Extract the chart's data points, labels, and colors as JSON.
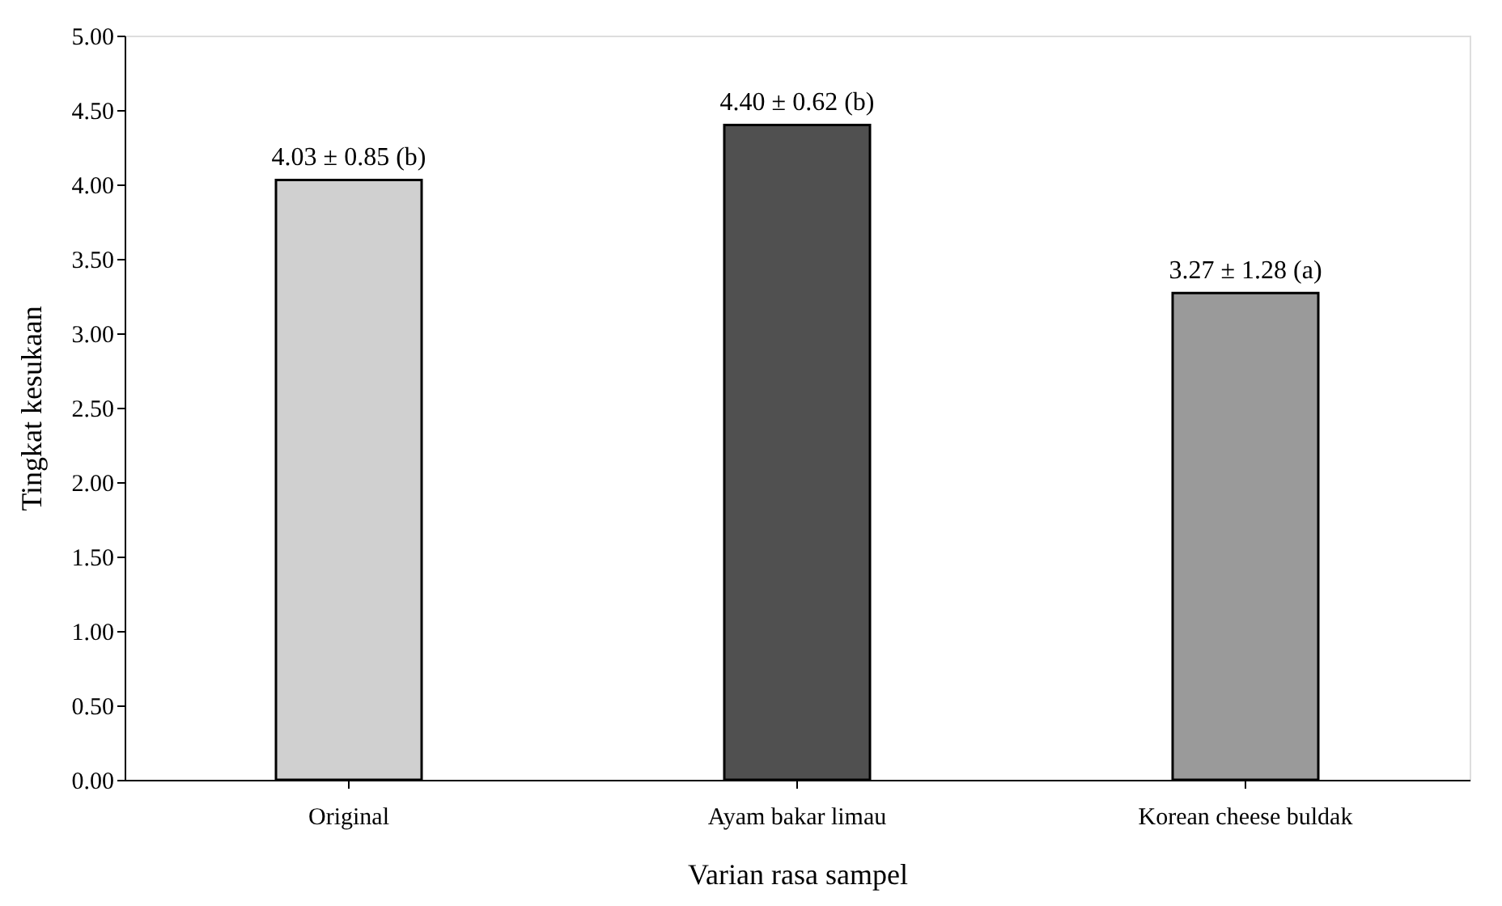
{
  "chart_data": {
    "type": "bar",
    "xlabel": "Varian rasa sampel",
    "ylabel": "Tingkat kesukaan",
    "categories": [
      "Original",
      "Ayam bakar limau",
      "Korean cheese buldak"
    ],
    "values": [
      4.03,
      4.4,
      3.27
    ],
    "colors": [
      "#d0d0d0",
      "#505050",
      "#9a9a9a"
    ],
    "value_labels": [
      "4.03 ± 0.85 (b)",
      "4.40 ± 0.62 (b)",
      "3.27 ± 1.28 (a)"
    ],
    "ylim": [
      0,
      5
    ],
    "yticks": [
      {
        "value": 0,
        "label": "0.00"
      },
      {
        "value": 0.5,
        "label": "0.50"
      },
      {
        "value": 1,
        "label": "1.00"
      },
      {
        "value": 1.5,
        "label": "1.50"
      },
      {
        "value": 2,
        "label": "2.00"
      },
      {
        "value": 2.5,
        "label": "2.50"
      },
      {
        "value": 3,
        "label": "3.00"
      },
      {
        "value": 3.5,
        "label": "3.50"
      },
      {
        "value": 4,
        "label": "4.00"
      },
      {
        "value": 4.5,
        "label": "4.50"
      },
      {
        "value": 5,
        "label": "5.00"
      }
    ],
    "grid": false,
    "legend": false
  }
}
